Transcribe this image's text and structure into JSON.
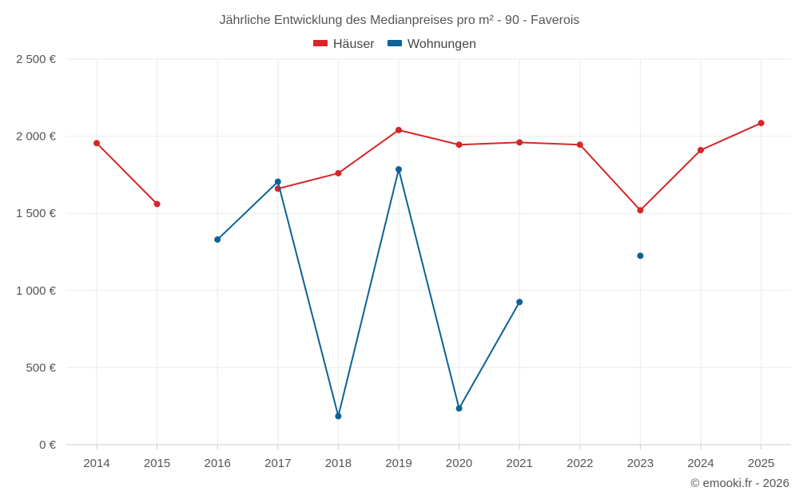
{
  "chart_data": {
    "type": "line",
    "title": "Jährliche Entwicklung des Medianpreises pro m² - 90 - Faverois",
    "categories": [
      "2014",
      "2015",
      "2016",
      "2017",
      "2018",
      "2019",
      "2020",
      "2021",
      "2022",
      "2023",
      "2024",
      "2025"
    ],
    "series": [
      {
        "name": "Häuser",
        "color": "#d62728",
        "values": [
          1955,
          1560,
          null,
          1660,
          1760,
          2040,
          1945,
          1960,
          1945,
          1520,
          1910,
          2085
        ]
      },
      {
        "name": "Wohnungen",
        "color": "#0b6396",
        "values": [
          null,
          null,
          1330,
          1705,
          185,
          1785,
          235,
          925,
          null,
          1225,
          null,
          null
        ]
      }
    ],
    "ylim": [
      0,
      2500
    ],
    "yticks": [
      0,
      500,
      1000,
      1500,
      2000,
      2500
    ],
    "ytick_labels": [
      "0 €",
      "500 €",
      "1 000 €",
      "1 500 €",
      "2 000 €",
      "2 500 €"
    ],
    "xlabel": "",
    "ylabel": "",
    "grid": true,
    "legend_position": "top-center"
  },
  "credit": "© emooki.fr - 2026"
}
